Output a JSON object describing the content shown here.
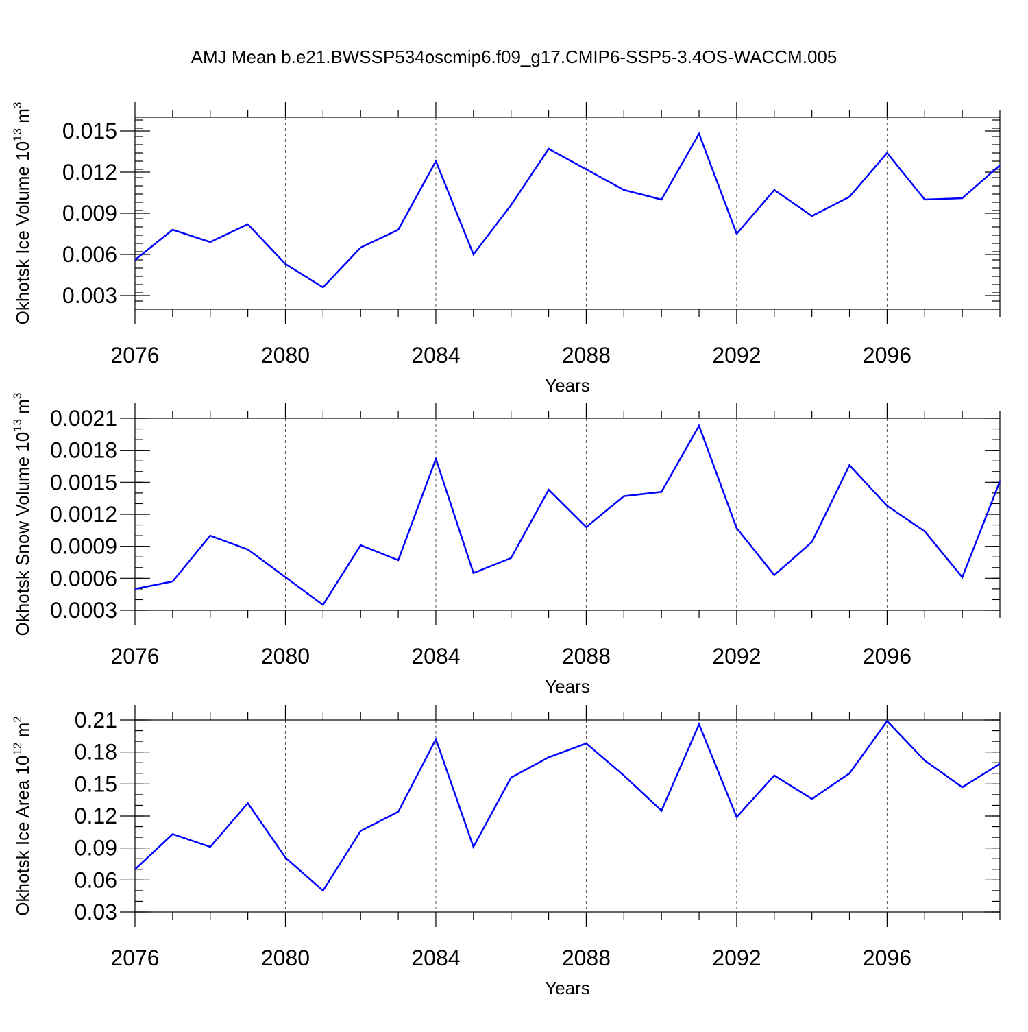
{
  "figure": {
    "title": "AMJ Mean b.e21.BWSSP534oscmip6.f09_g17.CMIP6-SSP5-3.4OS-WACCM.005"
  },
  "chart_data": [
    {
      "type": "line",
      "title": "",
      "xlabel": "Years",
      "ylabel": "Okhotsk Ice Volume 10",
      "ylabel_exp": "13",
      "ylabel_unit": "m",
      "ylabel_unit_exp": "3",
      "xlim": [
        2076,
        2099
      ],
      "ylim": [
        0.002,
        0.016
      ],
      "x_ticks": [
        2076,
        2080,
        2084,
        2088,
        2092,
        2096
      ],
      "y_ticks": [
        0.003,
        0.006,
        0.009,
        0.012,
        0.015
      ],
      "y_tick_labels": [
        "0.003",
        "0.006",
        "0.009",
        "0.012",
        "0.015"
      ],
      "y_minor_step": 0.0006,
      "grid": "vertical dashed at major x ticks",
      "line_color": "#0000ff",
      "x": [
        2076,
        2077,
        2078,
        2079,
        2080,
        2081,
        2082,
        2083,
        2084,
        2085,
        2086,
        2087,
        2088,
        2089,
        2090,
        2091,
        2092,
        2093,
        2094,
        2095,
        2096,
        2097,
        2098,
        2099
      ],
      "series": [
        {
          "values": [
            0.0056,
            0.0078,
            0.0069,
            0.0082,
            0.0053,
            0.0036,
            0.0065,
            0.0078,
            0.0128,
            0.006,
            0.0096,
            0.0137,
            0.0122,
            0.0107,
            0.01,
            0.0148,
            0.0075,
            0.0107,
            0.0088,
            0.0102,
            0.0134,
            0.01,
            0.0101,
            0.0125
          ]
        }
      ]
    },
    {
      "type": "line",
      "title": "",
      "xlabel": "Years",
      "ylabel": "Okhotsk Snow Volume 10",
      "ylabel_exp": "13",
      "ylabel_unit": "m",
      "ylabel_unit_exp": "3",
      "xlim": [
        2076,
        2099
      ],
      "ylim": [
        0.0003,
        0.0021
      ],
      "x_ticks": [
        2076,
        2080,
        2084,
        2088,
        2092,
        2096
      ],
      "y_ticks": [
        0.0003,
        0.0006,
        0.0009,
        0.0012,
        0.0015,
        0.0018,
        0.0021
      ],
      "y_tick_labels": [
        "0.0003",
        "0.0006",
        "0.0009",
        "0.0012",
        "0.0015",
        "0.0018",
        "0.0021"
      ],
      "y_minor_step": 0.0001,
      "grid": "vertical dashed at major x ticks",
      "line_color": "#0000ff",
      "x": [
        2076,
        2077,
        2078,
        2079,
        2080,
        2081,
        2082,
        2083,
        2084,
        2085,
        2086,
        2087,
        2088,
        2089,
        2090,
        2091,
        2092,
        2093,
        2094,
        2095,
        2096,
        2097,
        2098,
        2099
      ],
      "series": [
        {
          "values": [
            0.0005,
            0.00057,
            0.001,
            0.00087,
            0.00061,
            0.00035,
            0.00091,
            0.00077,
            0.00172,
            0.00065,
            0.00079,
            0.00143,
            0.00108,
            0.00137,
            0.00141,
            0.00203,
            0.00107,
            0.00063,
            0.00094,
            0.00166,
            0.00128,
            0.00104,
            0.00061,
            0.00151
          ]
        }
      ]
    },
    {
      "type": "line",
      "title": "",
      "xlabel": "Years",
      "ylabel": "Okhotsk Ice Area 10",
      "ylabel_exp": "12",
      "ylabel_unit": "m",
      "ylabel_unit_exp": "2",
      "xlim": [
        2076,
        2099
      ],
      "ylim": [
        0.03,
        0.21
      ],
      "x_ticks": [
        2076,
        2080,
        2084,
        2088,
        2092,
        2096
      ],
      "y_ticks": [
        0.03,
        0.06,
        0.09,
        0.12,
        0.15,
        0.18,
        0.21
      ],
      "y_tick_labels": [
        "0.03",
        "0.06",
        "0.09",
        "0.12",
        "0.15",
        "0.18",
        "0.21"
      ],
      "y_minor_step": 0.01,
      "grid": "vertical dashed at major x ticks",
      "line_color": "#0000ff",
      "x": [
        2076,
        2077,
        2078,
        2079,
        2080,
        2081,
        2082,
        2083,
        2084,
        2085,
        2086,
        2087,
        2088,
        2089,
        2090,
        2091,
        2092,
        2093,
        2094,
        2095,
        2096,
        2097,
        2098,
        2099
      ],
      "series": [
        {
          "values": [
            0.07,
            0.103,
            0.091,
            0.132,
            0.081,
            0.05,
            0.106,
            0.124,
            0.192,
            0.091,
            0.156,
            0.175,
            0.188,
            0.158,
            0.125,
            0.206,
            0.119,
            0.158,
            0.136,
            0.16,
            0.209,
            0.172,
            0.147,
            0.169
          ]
        }
      ]
    }
  ]
}
